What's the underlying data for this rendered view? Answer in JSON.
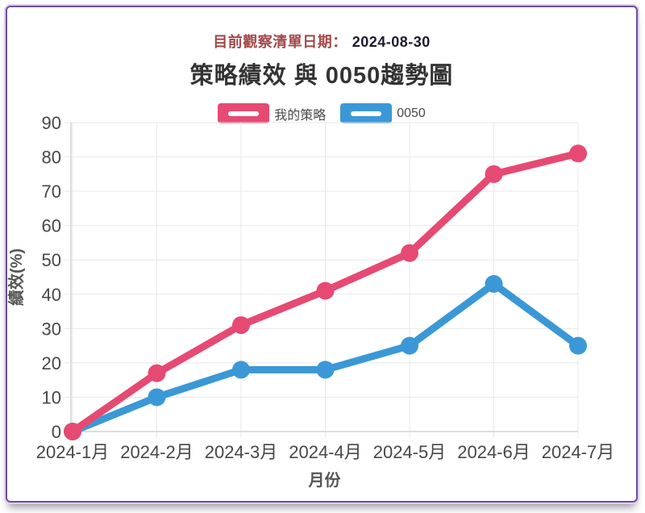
{
  "header": {
    "date_label": "目前觀察清單日期：",
    "date_value": "2024-08-30",
    "label_color": "#a34848",
    "value_color": "#1c1c2e"
  },
  "chart_data": {
    "type": "line",
    "title": "策略績效 與 0050趨勢圖",
    "categories": [
      "2024-1月",
      "2024-2月",
      "2024-3月",
      "2024-4月",
      "2024-5月",
      "2024-6月",
      "2024-7月"
    ],
    "series": [
      {
        "name": "我的策略",
        "color": "#e64a73",
        "values": [
          0,
          17,
          31,
          41,
          52,
          75,
          81
        ]
      },
      {
        "name": "0050",
        "color": "#3b98d6",
        "values": [
          0,
          10,
          18,
          18,
          25,
          43,
          25
        ]
      }
    ],
    "xlabel": "月份",
    "ylabel": "績效(%)",
    "ylim": [
      0,
      90
    ],
    "ytick_step": 10,
    "grid": true,
    "legend_position": "top",
    "grid_color": "#e8e8e8",
    "axis_color": "#d4d4d4",
    "border_color": "#6d4f96"
  }
}
